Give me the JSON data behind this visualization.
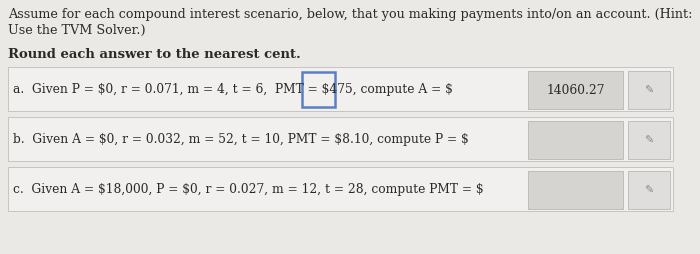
{
  "bg_color": "#ebe9e6",
  "row_bg": "#f2f0ee",
  "answer_box_color": "#d6d4d1",
  "pencil_box_color": "#e0dedd",
  "highlight_color": "#5b7fc4",
  "text_color": "#2a2a2a",
  "header1": "Assume for each compound interest scenario, below, that you making payments into/on an account. (Hint:",
  "header2": "Use the TVM Solver.)",
  "subheader": "Round each answer to the nearest cent.",
  "row_a_text": "a.  Given P = $0, r = 0.071, m = 4, t = 6,  PMT = $475, compute A = $",
  "row_a_answer": "14060.27",
  "row_b_text": "b.  Given A = $0, r = 0.032, m = 52, t = 10, PMT = $8.10, compute P = $",
  "row_c_text": "c.  Given A = $18,000, P = $0, r = 0.027, m = 12, t = 28, compute PMT = $",
  "font_size_header": 9.2,
  "font_size_sub": 9.5,
  "font_size_row": 8.8
}
